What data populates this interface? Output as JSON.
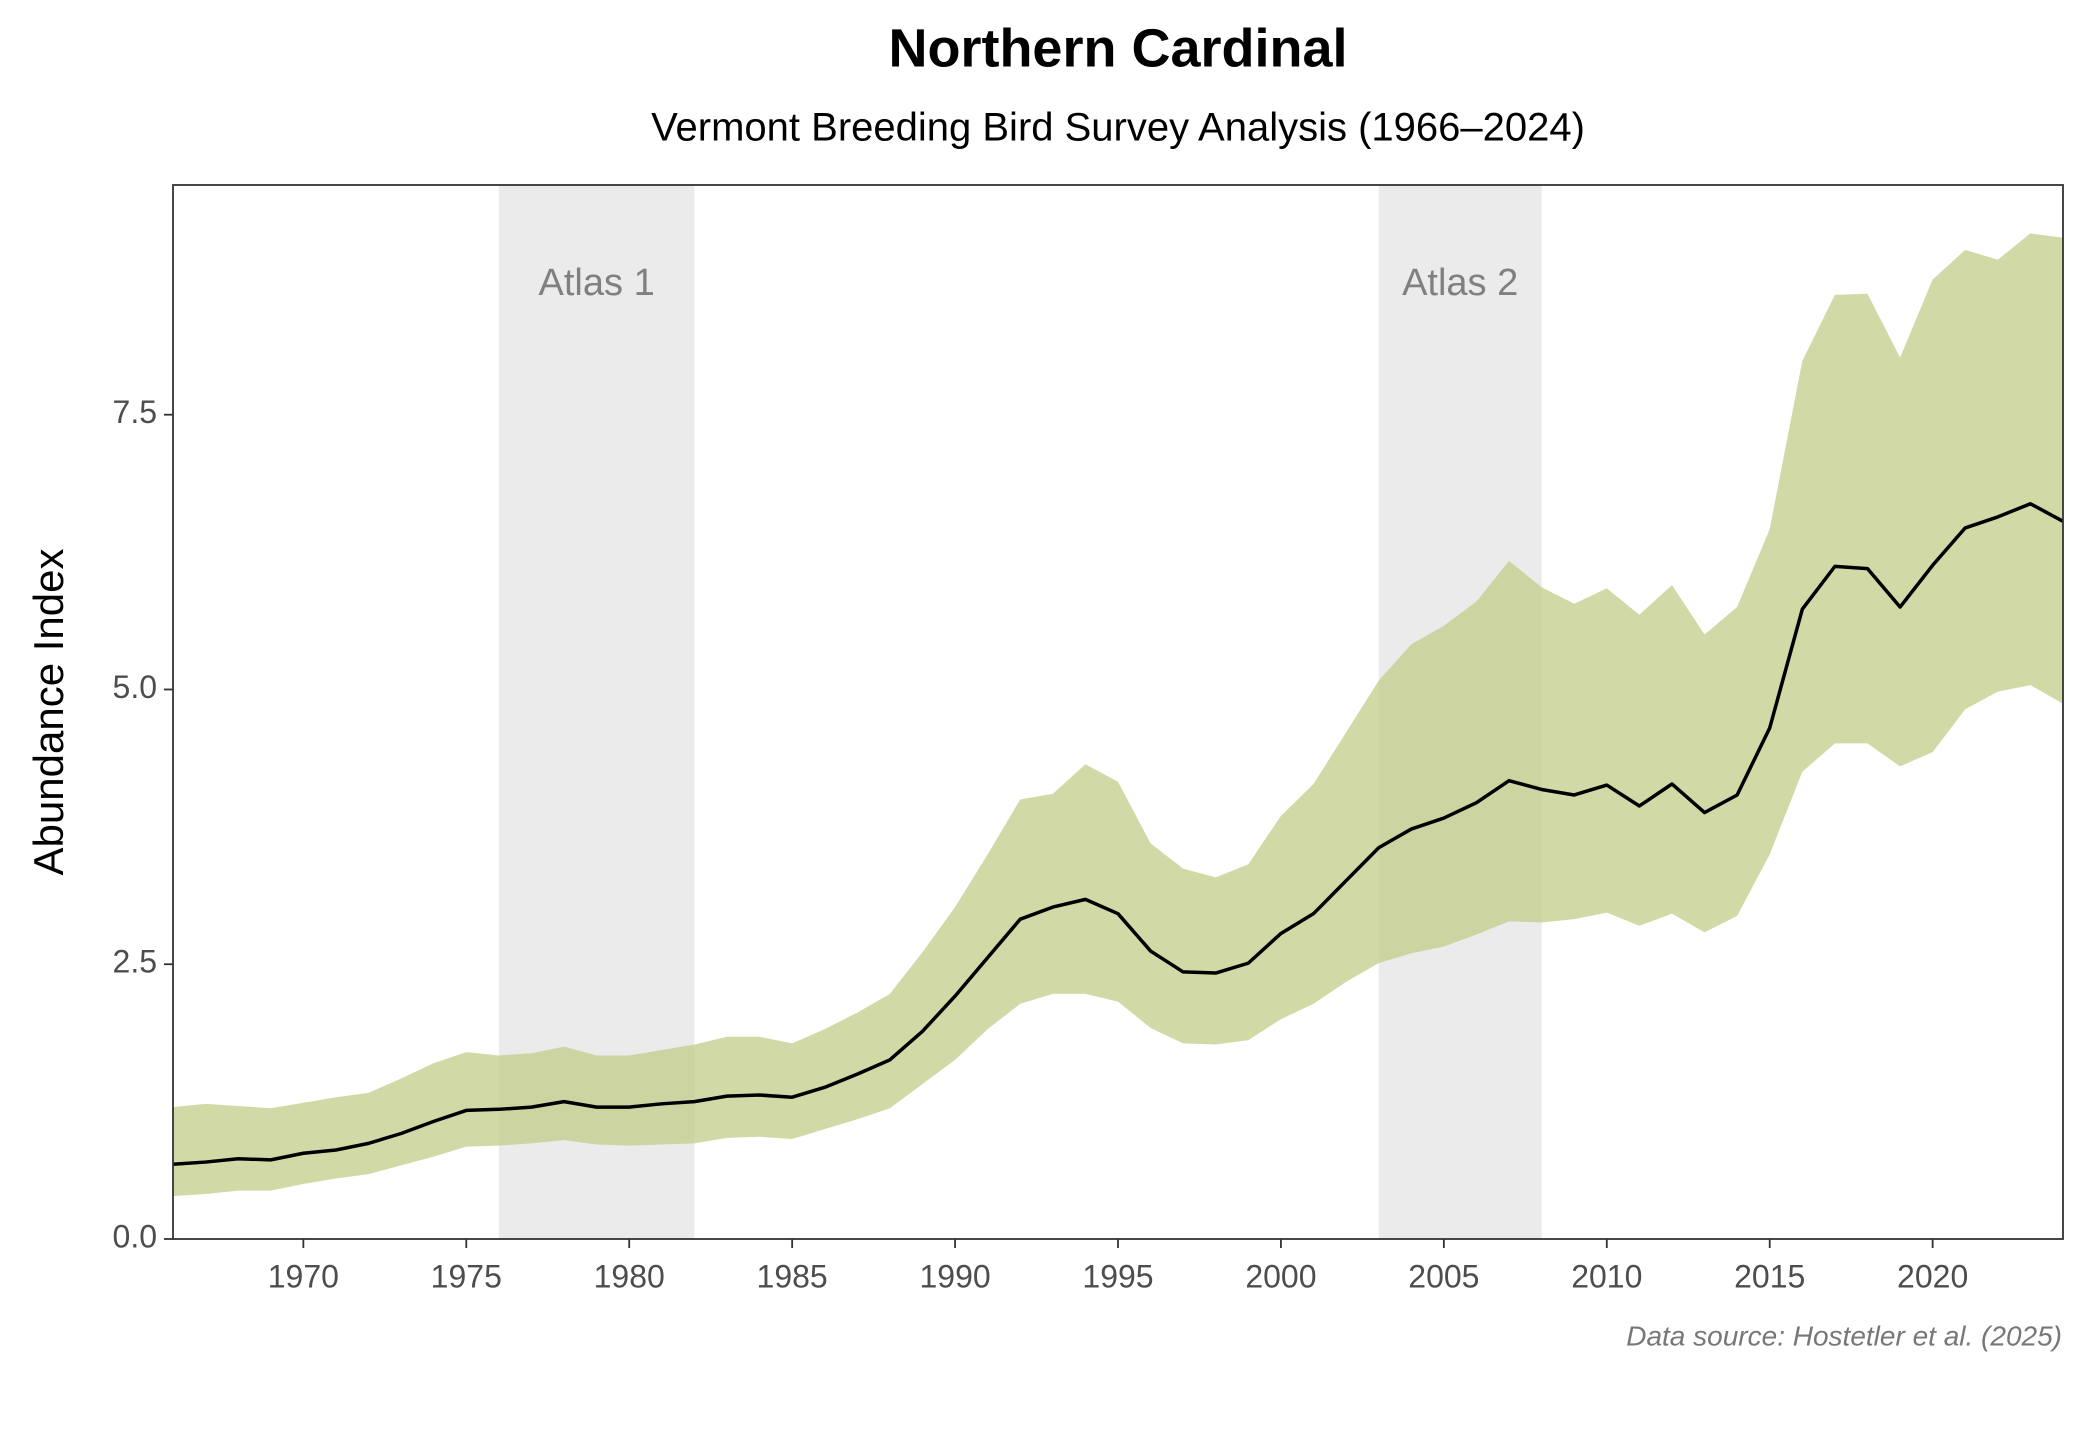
{
  "chart_data": {
    "type": "line",
    "title": "Northern Cardinal",
    "subtitle": "Vermont Breeding Bird Survey Analysis (1966–2024)",
    "y_label": "Abundance Index",
    "caption": "Data source: Hostetler et al. (2025)",
    "xlim": [
      1966,
      2024
    ],
    "ylim": [
      0,
      9.59
    ],
    "xticks": [
      1970,
      1975,
      1980,
      1985,
      1990,
      1995,
      2000,
      2005,
      2010,
      2015,
      2020
    ],
    "yticks": [
      {
        "value": 0,
        "label": "0.0"
      },
      2.5,
      {
        "value": 5,
        "label": "5.0"
      },
      7.5
    ],
    "shaded_regions": [
      {
        "label": "Atlas 1",
        "start": 1976,
        "end": 1982,
        "color": "#ebebeb"
      },
      {
        "label": "Atlas 2",
        "start": 2003,
        "end": 2008,
        "color": "#ebebeb"
      }
    ],
    "x": [
      1966,
      1967,
      1968,
      1969,
      1970,
      1971,
      1972,
      1973,
      1974,
      1975,
      1976,
      1977,
      1978,
      1979,
      1980,
      1981,
      1982,
      1983,
      1984,
      1985,
      1986,
      1987,
      1988,
      1989,
      1990,
      1991,
      1992,
      1993,
      1994,
      1995,
      1996,
      1997,
      1998,
      1999,
      2000,
      2001,
      2002,
      2003,
      2004,
      2005,
      2006,
      2007,
      2008,
      2009,
      2010,
      2011,
      2012,
      2013,
      2014,
      2015,
      2016,
      2017,
      2018,
      2019,
      2020,
      2021,
      2022,
      2023,
      2024
    ],
    "series": [
      {
        "color": "#000000",
        "values": [
          0.68,
          0.7,
          0.73,
          0.72,
          0.78,
          0.81,
          0.87,
          0.96,
          1.07,
          1.17,
          1.18,
          1.2,
          1.25,
          1.2,
          1.2,
          1.23,
          1.25,
          1.3,
          1.31,
          1.29,
          1.38,
          1.5,
          1.63,
          1.89,
          2.21,
          2.56,
          2.91,
          3.02,
          3.09,
          2.96,
          2.62,
          2.43,
          2.42,
          2.51,
          2.78,
          2.96,
          3.26,
          3.56,
          3.73,
          3.83,
          3.97,
          4.17,
          4.09,
          4.04,
          4.13,
          3.94,
          4.14,
          3.88,
          4.04,
          4.65,
          5.73,
          6.12,
          6.1,
          5.75,
          6.13,
          6.47,
          6.57,
          6.69,
          6.53
        ]
      }
    ],
    "band": {
      "color": "#c2cd8a",
      "lower": [
        0.39,
        0.41,
        0.44,
        0.44,
        0.5,
        0.55,
        0.59,
        0.67,
        0.75,
        0.84,
        0.85,
        0.87,
        0.9,
        0.86,
        0.85,
        0.86,
        0.87,
        0.92,
        0.93,
        0.91,
        1.0,
        1.09,
        1.19,
        1.41,
        1.63,
        1.91,
        2.14,
        2.23,
        2.23,
        2.16,
        1.92,
        1.78,
        1.77,
        1.81,
        2.0,
        2.14,
        2.34,
        2.51,
        2.6,
        2.66,
        2.77,
        2.89,
        2.88,
        2.91,
        2.97,
        2.85,
        2.96,
        2.79,
        2.94,
        3.5,
        4.25,
        4.51,
        4.51,
        4.3,
        4.43,
        4.82,
        4.98,
        5.04,
        4.87
      ],
      "upper": [
        1.2,
        1.23,
        1.21,
        1.19,
        1.24,
        1.29,
        1.33,
        1.46,
        1.6,
        1.7,
        1.67,
        1.69,
        1.75,
        1.67,
        1.67,
        1.72,
        1.77,
        1.84,
        1.84,
        1.78,
        1.91,
        2.06,
        2.23,
        2.61,
        3.02,
        3.5,
        4.0,
        4.05,
        4.32,
        4.16,
        3.6,
        3.37,
        3.29,
        3.41,
        3.85,
        4.14,
        4.61,
        5.08,
        5.41,
        5.58,
        5.8,
        6.17,
        5.93,
        5.78,
        5.92,
        5.68,
        5.95,
        5.5,
        5.75,
        6.46,
        7.99,
        8.59,
        8.6,
        8.02,
        8.73,
        9.0,
        8.91,
        9.15,
        9.11
      ]
    }
  }
}
